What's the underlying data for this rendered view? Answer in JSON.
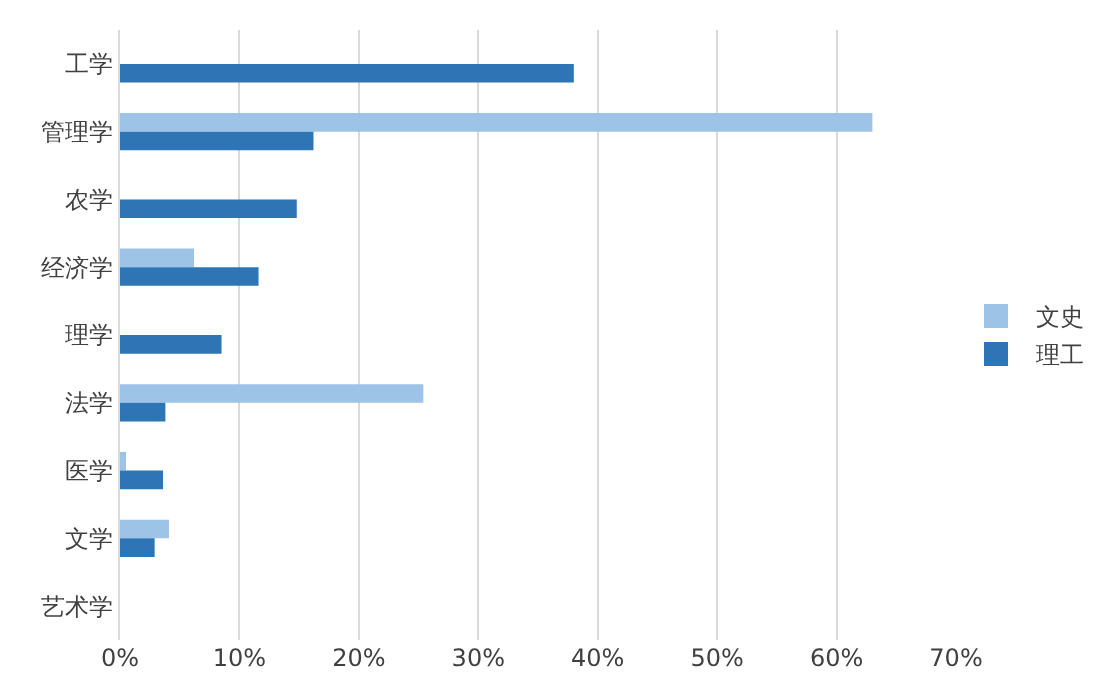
{
  "chart_data": {
    "type": "bar",
    "orientation": "horizontal",
    "categories": [
      "工学",
      "管理学",
      "农学",
      "经济学",
      "理学",
      "法学",
      "医学",
      "文学",
      "艺术学"
    ],
    "series": [
      {
        "name": "文史",
        "color": "#9dc3e6",
        "values": [
          0,
          63,
          0,
          6.2,
          0,
          25.4,
          0.5,
          4.1,
          0
        ]
      },
      {
        "name": "理工",
        "color": "#2e75b6",
        "values": [
          38,
          16.2,
          14.8,
          11.6,
          8.5,
          3.8,
          3.6,
          2.9,
          0
        ]
      }
    ],
    "xlim": [
      0,
      70
    ],
    "xticks": [
      {
        "value": 0,
        "label": "0%"
      },
      {
        "value": 10,
        "label": "10%"
      },
      {
        "value": 20,
        "label": "20%"
      },
      {
        "value": 30,
        "label": "30%"
      },
      {
        "value": 40,
        "label": "40%"
      },
      {
        "value": 50,
        "label": "50%"
      },
      {
        "value": 60,
        "label": "60%"
      },
      {
        "value": 70,
        "label": "70%"
      }
    ],
    "grid": "x",
    "legend": "right"
  }
}
